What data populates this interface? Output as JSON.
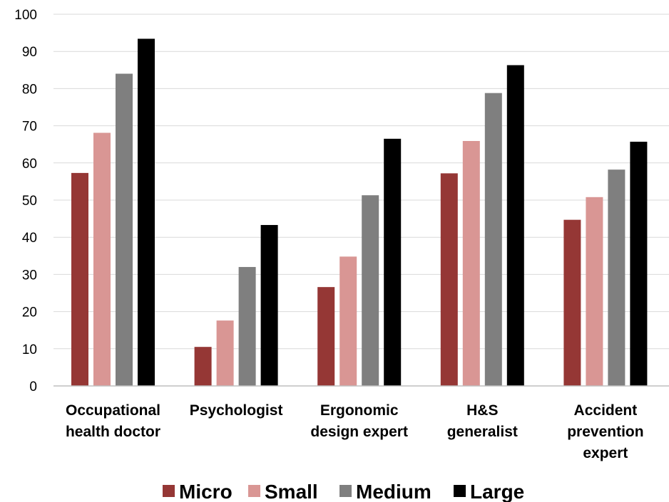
{
  "chart_data": {
    "type": "bar",
    "categories": [
      [
        "Occupational",
        "health doctor"
      ],
      [
        "Psychologist"
      ],
      [
        "Ergonomic",
        "design expert"
      ],
      [
        "H&S",
        "generalist"
      ],
      [
        "Accident",
        "prevention",
        "expert"
      ]
    ],
    "series": [
      {
        "name": "Micro",
        "color": "#953735",
        "values": [
          57.3,
          10.5,
          26.6,
          57.2,
          44.7
        ]
      },
      {
        "name": "Small",
        "color": "#d99694",
        "values": [
          68.1,
          17.6,
          34.8,
          65.9,
          50.8
        ]
      },
      {
        "name": "Medium",
        "color": "#7f7f7f",
        "values": [
          84.0,
          32.0,
          51.3,
          78.8,
          58.2
        ]
      },
      {
        "name": "Large",
        "color": "#000000",
        "values": [
          93.4,
          43.3,
          66.5,
          86.3,
          65.7
        ]
      }
    ],
    "ylim": [
      0,
      100
    ],
    "yticks": [
      0,
      10,
      20,
      30,
      40,
      50,
      60,
      70,
      80,
      90,
      100
    ],
    "title": "",
    "xlabel": "",
    "ylabel": "",
    "grid": true,
    "legend_position": "bottom"
  }
}
